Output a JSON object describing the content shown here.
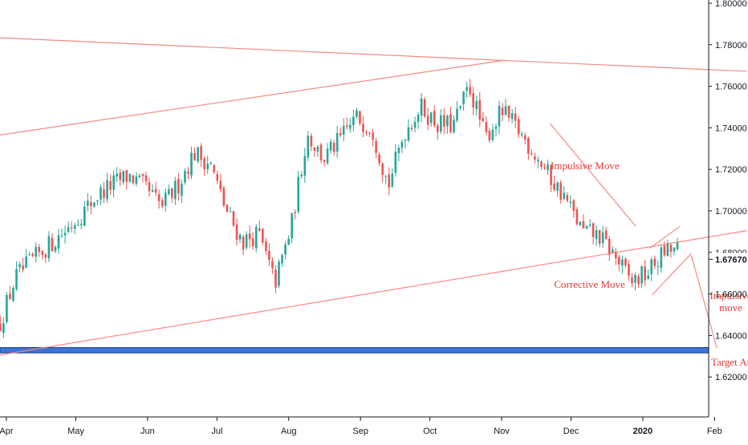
{
  "colors": {
    "up": "#26a69a",
    "down": "#ef5350",
    "trendline": "#f28b82",
    "annotation_text": "#e53935",
    "support_zone_fill": "#3d72d6",
    "support_zone_border": "#1b3f8f",
    "axis_text": "#131722",
    "price_label_bg": "#ffffff"
  },
  "chart_data": {
    "type": "candlestick",
    "symbol_hint": "",
    "x_axis": {
      "ticks": [
        "Apr",
        "May",
        "Jun",
        "Jul",
        "Aug",
        "Sep",
        "Oct",
        "Nov",
        "Dec",
        "2020",
        "Feb"
      ],
      "bold_ticks": [
        "2020"
      ]
    },
    "y_axis": {
      "position": "right",
      "ylim": [
        1.6,
        1.8
      ],
      "ticks": [
        "1.80000",
        "1.78000",
        "1.76000",
        "1.74000",
        "1.72000",
        "1.70000",
        "1.68000",
        "1.66000",
        "1.64000",
        "1.62000"
      ],
      "current_price": "1.67670"
    },
    "grid": false,
    "weekly_path": [
      [
        "2019-03-29",
        1.645
      ],
      [
        "2019-04-05",
        1.668
      ],
      [
        "2019-04-12",
        1.676
      ],
      [
        "2019-04-19",
        1.683
      ],
      [
        "2019-04-26",
        1.69
      ],
      [
        "2019-05-03",
        1.698
      ],
      [
        "2019-05-10",
        1.707
      ],
      [
        "2019-05-17",
        1.713
      ],
      [
        "2019-05-24",
        1.717
      ],
      [
        "2019-05-31",
        1.711
      ],
      [
        "2019-06-07",
        1.702
      ],
      [
        "2019-06-14",
        1.712
      ],
      [
        "2019-06-21",
        1.728
      ],
      [
        "2019-06-28",
        1.723
      ],
      [
        "2019-07-05",
        1.7
      ],
      [
        "2019-07-12",
        1.685
      ],
      [
        "2019-07-19",
        1.689
      ],
      [
        "2019-07-26",
        1.665
      ],
      [
        "2019-08-02",
        1.692
      ],
      [
        "2019-08-09",
        1.737
      ],
      [
        "2019-08-16",
        1.725
      ],
      [
        "2019-08-23",
        1.734
      ],
      [
        "2019-08-30",
        1.745
      ],
      [
        "2019-09-06",
        1.74
      ],
      [
        "2019-09-13",
        1.712
      ],
      [
        "2019-09-20",
        1.738
      ],
      [
        "2019-09-27",
        1.75
      ],
      [
        "2019-10-04",
        1.742
      ],
      [
        "2019-10-11",
        1.741
      ],
      [
        "2019-10-18",
        1.76
      ],
      [
        "2019-10-25",
        1.735
      ],
      [
        "2019-11-01",
        1.748
      ],
      [
        "2019-11-08",
        1.739
      ],
      [
        "2019-11-15",
        1.728
      ],
      [
        "2019-11-22",
        1.716
      ],
      [
        "2019-11-29",
        1.705
      ],
      [
        "2019-12-06",
        1.69
      ],
      [
        "2019-12-13",
        1.688
      ],
      [
        "2019-12-20",
        1.678
      ],
      [
        "2019-12-27",
        1.666
      ],
      [
        "2020-01-03",
        1.67
      ],
      [
        "2020-01-10",
        1.68
      ],
      [
        "2020-01-17",
        1.682
      ]
    ],
    "lines": [
      {
        "from": [
          "2019-03-26",
          1.7835
        ],
        "to": [
          "2020-02-15",
          1.7672
        ]
      },
      {
        "from": [
          "2019-03-26",
          1.736
        ],
        "to": [
          "2019-11-02",
          1.7725
        ]
      },
      {
        "from": [
          "2019-03-26",
          1.63
        ],
        "to": [
          "2020-02-15",
          1.6905
        ]
      },
      {
        "from": [
          "2019-11-22",
          1.742
        ],
        "to": [
          "2019-12-29",
          1.6925
        ]
      },
      {
        "from": [
          "2020-01-04",
          1.682
        ],
        "to": [
          "2020-01-17",
          1.6925
        ]
      },
      {
        "from": [
          "2020-01-05",
          1.6595
        ],
        "to": [
          "2020-01-22",
          1.6795
        ]
      },
      {
        "from": [
          "2020-01-22",
          1.6785
        ],
        "to": [
          "2020-02-02",
          1.634
        ]
      }
    ],
    "zones": [
      {
        "x_from": "2019-03-26",
        "x_to": "2020-02-15",
        "y_from": 1.6316,
        "y_to": 1.6342
      }
    ],
    "annotations": [
      {
        "text": [
          "Impulsive Move"
        ],
        "x": "2019-12-07",
        "y": 1.72
      },
      {
        "text": [
          "Corrective Move"
        ],
        "x": "2019-12-09",
        "y": 1.663
      },
      {
        "text": [
          "Impulsive",
          "move"
        ],
        "x": "2020-02-08",
        "y": 1.6575
      },
      {
        "text": [
          "Target Area"
        ],
        "x": "2020-02-10",
        "y": 1.6255
      }
    ]
  }
}
